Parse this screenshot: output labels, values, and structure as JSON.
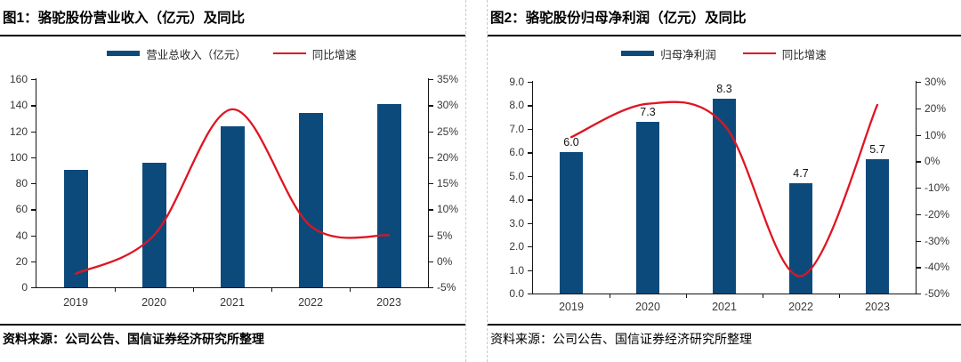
{
  "chart_data": [
    {
      "type": "bar+line",
      "panel_label": "图1：骆驼股份营业收入（亿元）及同比",
      "categories": [
        "2019",
        "2020",
        "2021",
        "2022",
        "2023"
      ],
      "bar_series": {
        "name": "营业总收入（亿元）",
        "values": [
          90,
          96,
          124,
          134,
          141
        ],
        "color": "#0D4A7C"
      },
      "line_series": {
        "name": "同比增速",
        "values_pct": [
          -2.4,
          5.0,
          29.2,
          6.8,
          5.0
        ],
        "color": "#DF1522"
      },
      "bar_labels": null,
      "left_axis": {
        "min": 0,
        "max": 160,
        "step": 20,
        "decimals": 0
      },
      "right_axis": {
        "min": -5,
        "max": 35,
        "step": 5,
        "suffix": "%"
      },
      "grid": false,
      "legend_position": "top-center",
      "source": "资料来源：公司公告、国信证券经济研究所整理"
    },
    {
      "type": "bar+line",
      "panel_label": "图2：骆驼股份归母净利润（亿元）及同比",
      "categories": [
        "2019",
        "2020",
        "2021",
        "2022",
        "2023"
      ],
      "bar_series": {
        "name": "归母净利润",
        "values": [
          6.0,
          7.3,
          8.3,
          4.7,
          5.7
        ],
        "color": "#0D4A7C"
      },
      "line_series": {
        "name": "同比增速",
        "values_pct": [
          9.1,
          21.7,
          13.7,
          -43.4,
          21.3
        ],
        "color": "#DF1522"
      },
      "bar_labels": [
        "6.0",
        "7.3",
        "8.3",
        "4.7",
        "5.7"
      ],
      "left_axis": {
        "min": 0,
        "max": 9,
        "step": 1,
        "decimals": 1
      },
      "right_axis": {
        "min": -50,
        "max": 30,
        "step": 10,
        "suffix": "%"
      },
      "grid": false,
      "legend_position": "top-center",
      "source": "资料来源：公司公告、国信证券经济研究所整理"
    }
  ]
}
